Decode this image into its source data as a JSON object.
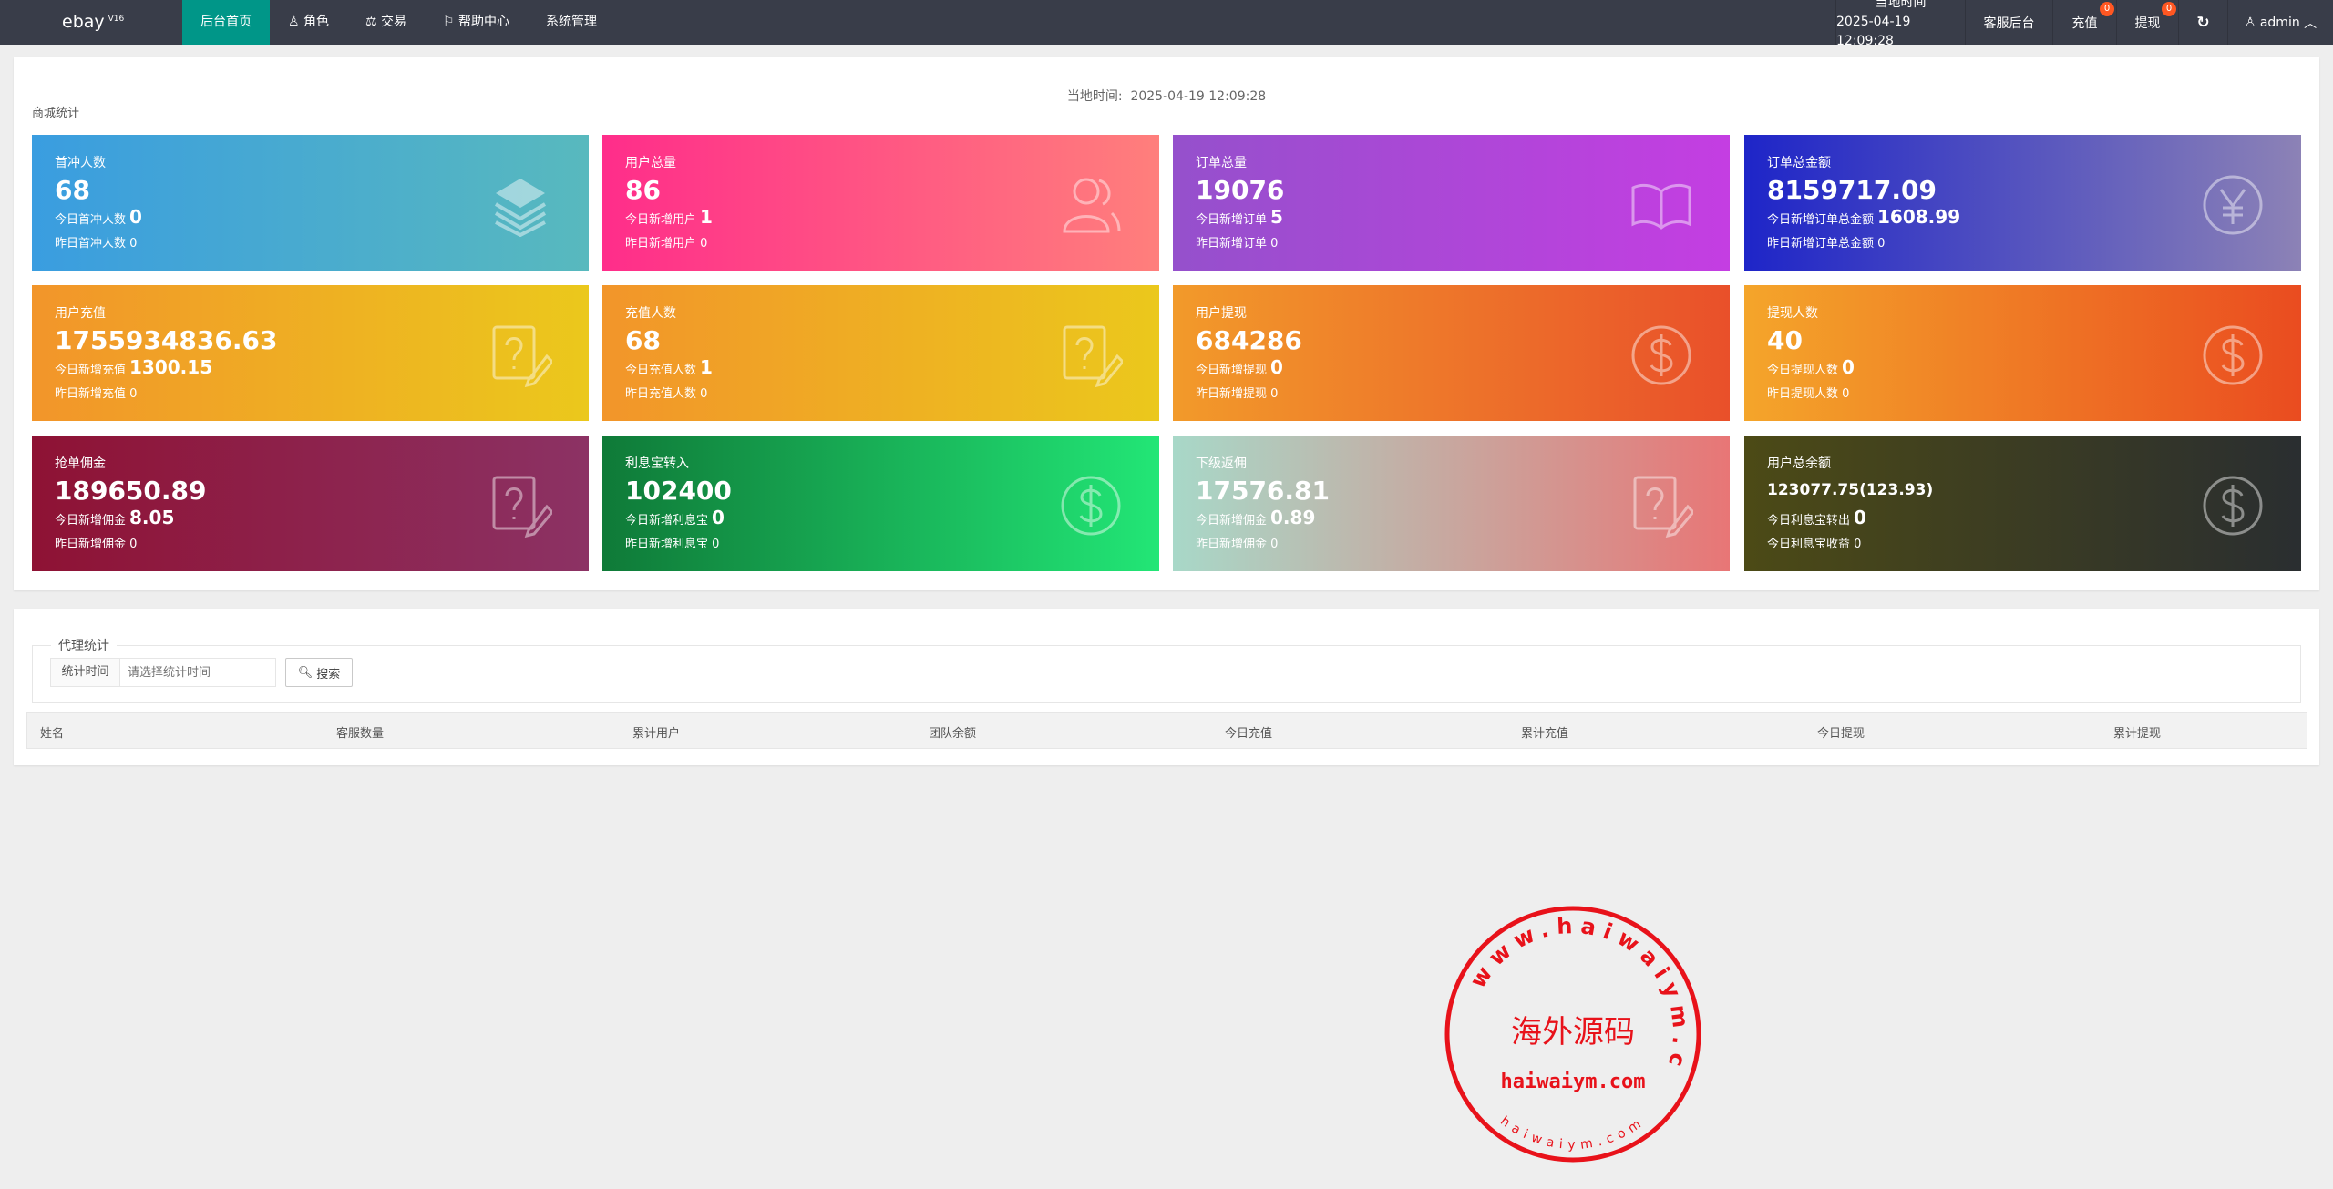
{
  "nav": {
    "logo": "ebay",
    "version": "V16",
    "menu": [
      "后台首页",
      "角色",
      "交易",
      "帮助中心",
      "系统管理"
    ],
    "clock_label": "当地时间",
    "clock_value": "2025-04-19 12:09:28",
    "service": "客服后台",
    "recharge": "充值",
    "recharge_badge": "0",
    "withdraw": "提现",
    "withdraw_badge": "0",
    "user": "admin"
  },
  "shop": {
    "local_time_label": "当地时间:",
    "local_time": "2025-04-19 12:09:28",
    "title": "商城统计",
    "cards": [
      {
        "title": "首冲人数",
        "value": "68",
        "today_label": "今日首冲人数",
        "today": "0",
        "yest_label": "昨日首冲人数",
        "yest": "0",
        "icon": "layers-icon",
        "colors": [
          "#3a9de0",
          "#58b9be"
        ]
      },
      {
        "title": "用户总量",
        "value": "86",
        "today_label": "今日新增用户",
        "today": "1",
        "yest_label": "昨日新增用户",
        "yest": "0",
        "icon": "users-icon",
        "colors": [
          "#ff2d8a",
          "#ff7f7c"
        ]
      },
      {
        "title": "订单总量",
        "value": "19076",
        "today_label": "今日新增订单",
        "today": "5",
        "yest_label": "昨日新增订单",
        "yest": "0",
        "icon": "book-icon",
        "colors": [
          "#9550cc",
          "#c43ee2"
        ]
      },
      {
        "title": "订单总金额",
        "value": "8159717.09",
        "today_label": "今日新增订单总金额",
        "today": "1608.99",
        "yest_label": "昨日新增订单总金额",
        "yest": "0",
        "icon": "yen-icon",
        "colors": [
          "#1e25c8",
          "#8c82b6"
        ]
      },
      {
        "title": "用户充值",
        "value": "1755934836.63",
        "today_label": "今日新增充值",
        "today": "1300.15",
        "yest_label": "昨日新增充值",
        "yest": "0",
        "icon": "help-edit-icon",
        "colors": [
          "#f2952a",
          "#ebc81c"
        ]
      },
      {
        "title": "充值人数",
        "value": "68",
        "today_label": "今日充值人数",
        "today": "1",
        "yest_label": "昨日充值人数",
        "yest": "0",
        "icon": "help-edit-icon",
        "colors": [
          "#f2952a",
          "#ebc81c"
        ]
      },
      {
        "title": "用户提现",
        "value": "684286",
        "today_label": "今日新增提现",
        "today": "0",
        "yest_label": "昨日新增提现",
        "yest": "0",
        "icon": "dollar-icon",
        "colors": [
          "#f29a2a",
          "#e9502a"
        ]
      },
      {
        "title": "提现人数",
        "value": "40",
        "today_label": "今日提现人数",
        "today": "0",
        "yest_label": "昨日提现人数",
        "yest": "0",
        "icon": "dollar-icon",
        "colors": [
          "#f4a52a",
          "#ea4c20"
        ]
      },
      {
        "title": "抢单佣金",
        "value": "189650.89",
        "today_label": "今日新增佣金",
        "today": "8.05",
        "yest_label": "昨日新增佣金",
        "yest": "0",
        "icon": "help-edit-icon",
        "colors": [
          "#8e1234",
          "#8c3264"
        ]
      },
      {
        "title": "利息宝转入",
        "value": "102400",
        "today_label": "今日新增利息宝",
        "today": "0",
        "yest_label": "昨日新增利息宝",
        "yest": "0",
        "icon": "dollar-icon",
        "colors": [
          "#0f7a38",
          "#22e676"
        ]
      },
      {
        "title": "下级返佣",
        "value": "17576.81",
        "today_label": "今日新增佣金",
        "today": "0.89",
        "yest_label": "昨日新增佣金",
        "yest": "0",
        "icon": "help-edit-icon",
        "colors": [
          "#a8d8c8",
          "#e87676"
        ]
      },
      {
        "title": "用户总余额",
        "value": "123077.75(123.93)",
        "today_label": "今日利息宝转出",
        "today": "0",
        "yest_label": "今日利息宝收益",
        "yest": "0",
        "icon": "dollar-icon",
        "colors": [
          "#4c4a16",
          "#2a2e30"
        ]
      }
    ]
  },
  "agent": {
    "legend": "代理统计",
    "time_label": "统计时间",
    "time_placeholder": "请选择统计时间",
    "search": "搜索",
    "columns": [
      "姓名",
      "客服数量",
      "累计用户",
      "团队余额",
      "今日充值",
      "累计充值",
      "今日提现",
      "累计提现"
    ]
  },
  "watermark": {
    "center": "海外源码",
    "main": "haiwaiym.com",
    "top_arc": "www.haiwaiym.com",
    "bottom_arc": "haiwaiym.com"
  }
}
